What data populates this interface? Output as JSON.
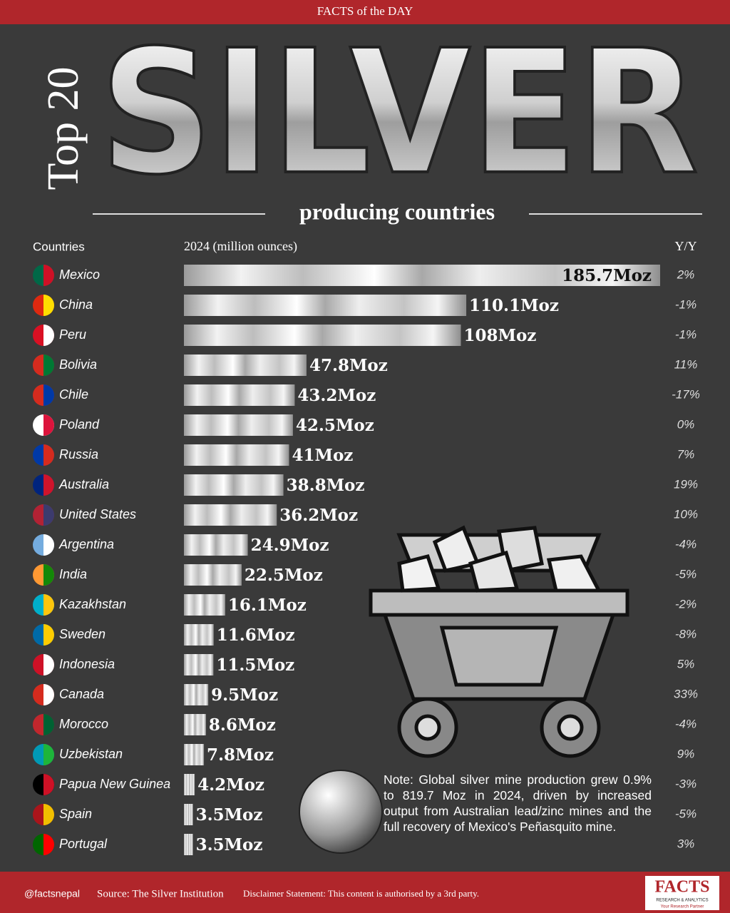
{
  "header": "FACTS of the DAY",
  "chart_data": {
    "type": "bar",
    "title_prefix": "Top 20",
    "title": "SILVER",
    "subtitle": "producing countries",
    "column_headers": [
      "Countries",
      "2024 (million ounces)",
      "Y/Y"
    ],
    "categories": [
      "Mexico",
      "China",
      "Peru",
      "Bolivia",
      "Chile",
      "Poland",
      "Russia",
      "Australia",
      "United States",
      "Argentina",
      "India",
      "Kazakhstan",
      "Sweden",
      "Indonesia",
      "Canada",
      "Morocco",
      "Uzbekistan",
      "Papua New Guinea",
      "Spain",
      "Portugal"
    ],
    "values": [
      185.7,
      110.1,
      108,
      47.8,
      43.2,
      42.5,
      41,
      38.8,
      36.2,
      24.9,
      22.5,
      16.1,
      11.6,
      11.5,
      9.5,
      8.6,
      7.8,
      4.2,
      3.5,
      3.5
    ],
    "value_labels": [
      "185.7Moz",
      "110.1Moz",
      "108Moz",
      "47.8Moz",
      "43.2Moz",
      "42.5Moz",
      "41Moz",
      "38.8Moz",
      "36.2Moz",
      "24.9Moz",
      "22.5Moz",
      "16.1Moz",
      "11.6Moz",
      "11.5Moz",
      "9.5Moz",
      "8.6Moz",
      "7.8Moz",
      "4.2Moz",
      "3.5Moz",
      "3.5Moz"
    ],
    "yoy": [
      "2%",
      "-1%",
      "-1%",
      "11%",
      "-17%",
      "0%",
      "7%",
      "19%",
      "10%",
      "-4%",
      "-5%",
      "-2%",
      "-8%",
      "5%",
      "33%",
      "-4%",
      "9%",
      "-3%",
      "-5%",
      "3%"
    ],
    "note": "Note: Global silver mine production grew 0.9% to 819.7 Moz in 2024, driven by increased output from Australian lead/zinc mines and the full recovery of Mexico's Peñasquito mine."
  },
  "footer": {
    "handle": "@factsnepal",
    "source": "Source: The Silver Institution",
    "disclaimer": "Disclaimer Statement: This content is authorised by a 3rd party.",
    "logo": "FACTS",
    "logo_sub": "RESEARCH & ANALYTICS",
    "logo_tag": "Your Research Partner"
  }
}
